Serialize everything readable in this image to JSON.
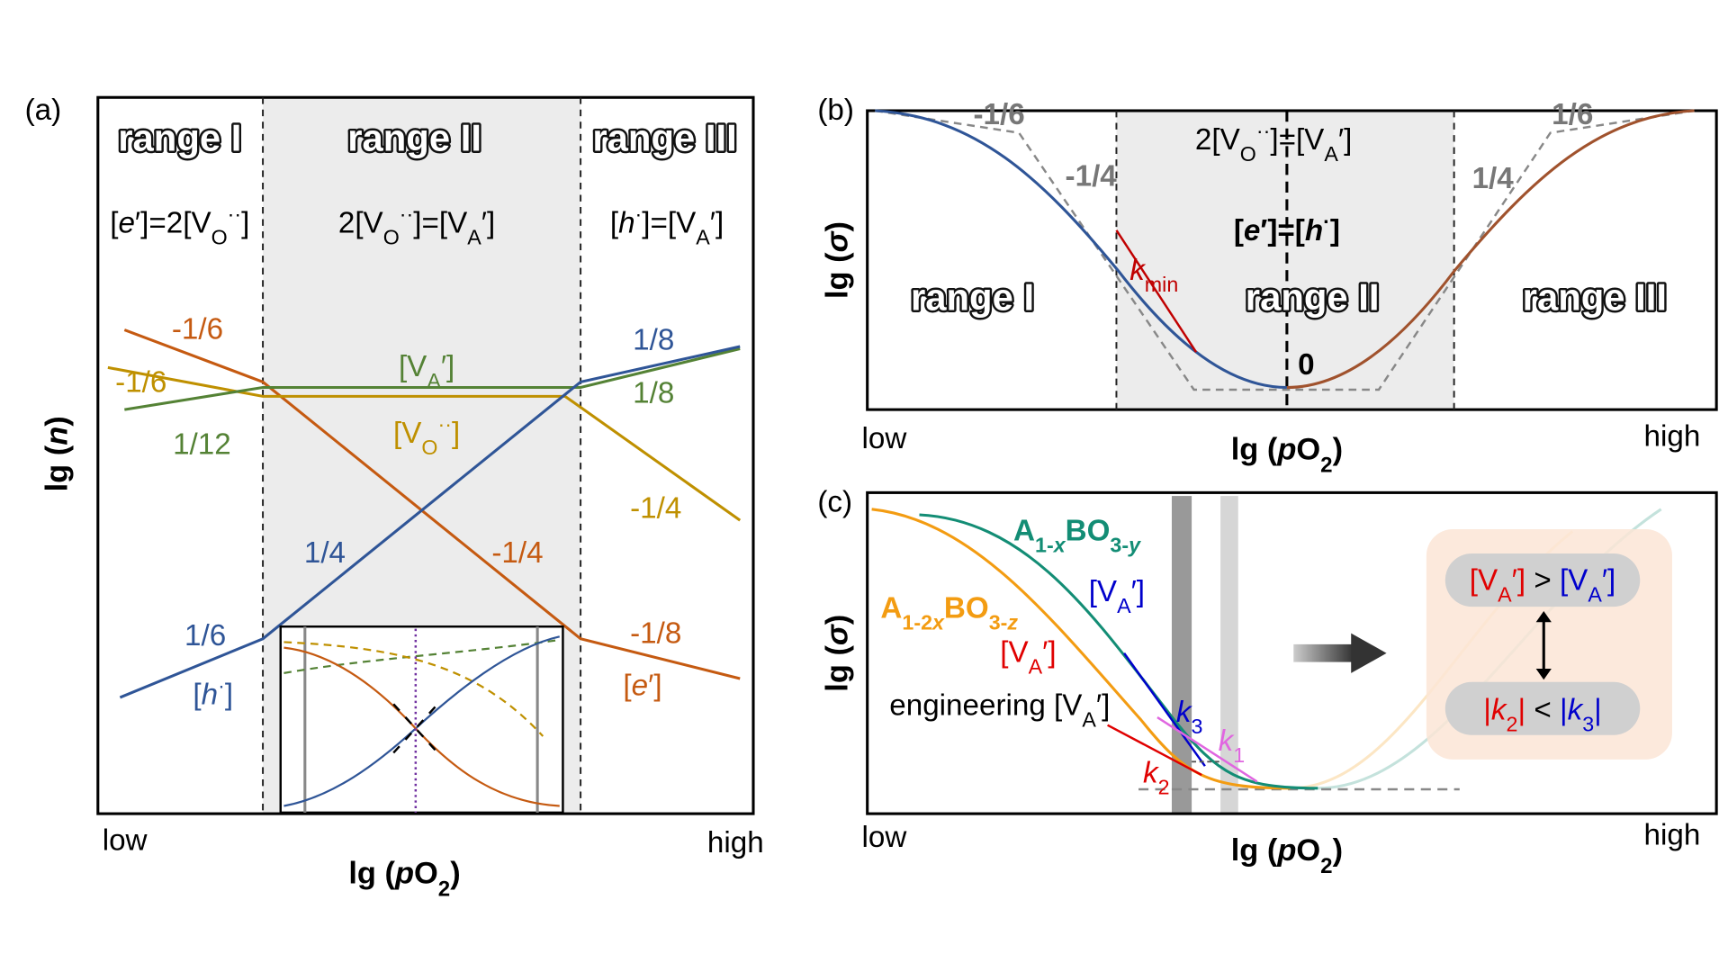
{
  "a": {
    "label": "(a)",
    "ranges": [
      "range I",
      "range II",
      "range III"
    ],
    "conditions": [
      [
        "[",
        "e",
        "′]=2[V",
        "O",
        "··",
        "]"
      ],
      [
        "2[V",
        "O",
        "··",
        "]=[V",
        "A",
        "′]"
      ],
      [
        "[",
        "h",
        "·",
        "]=[V",
        "A",
        "′]"
      ]
    ],
    "slopes": [
      "-1/6",
      "-1/6",
      "1/12",
      "1/8",
      "1/8",
      "-1/4",
      "1/4",
      "-1/4",
      "1/6",
      "-1/8"
    ],
    "species": {
      "VA": [
        "[V",
        "A",
        "′]"
      ],
      "VO": [
        "[V",
        "O",
        "··",
        "]"
      ],
      "h": [
        "[",
        "h",
        "·",
        "]"
      ],
      "e": [
        "[",
        "e",
        "′]"
      ]
    },
    "x_axis": {
      "low": "low",
      "high": "high",
      "title": [
        "lg (",
        "p",
        "O",
        "2",
        ")"
      ]
    },
    "y_axis": [
      "lg (",
      "n",
      ")"
    ]
  },
  "b": {
    "label": "(b)",
    "slopes": [
      "-1/6",
      "-1/4",
      "1/6",
      "1/4"
    ],
    "conditions": [
      [
        "2[V",
        "O",
        "··",
        "]=[V",
        "A",
        "′]"
      ],
      [
        "[",
        "e",
        "′]=[",
        "h",
        "·",
        "]"
      ]
    ],
    "k_min": [
      "k",
      "min"
    ],
    "ranges": [
      "range I",
      "range II",
      "range III"
    ],
    "zero": "0",
    "x_axis": {
      "low": "low",
      "high": "high",
      "title": [
        "lg (",
        "p",
        "O",
        "2",
        ")"
      ]
    },
    "y_axis": [
      "lg (",
      "σ",
      ")"
    ]
  },
  "c": {
    "label": "(c)",
    "materials": [
      [
        "A",
        "1-",
        "x",
        "BO",
        "3-",
        "y"
      ],
      [
        "A",
        "1-2",
        "x",
        "BO",
        "3-",
        "z"
      ]
    ],
    "vacancy": [
      "[V",
      "A",
      "′]"
    ],
    "engineering": [
      "engineering [V",
      "A",
      "′]"
    ],
    "k3": [
      "k",
      "3"
    ],
    "k1": [
      "k",
      "1"
    ],
    "k2": [
      "k",
      "2"
    ],
    "compare_vacancy": [
      "[V",
      "A",
      "′]",
      " > ",
      "[V",
      "A",
      "′]"
    ],
    "compare_slope": [
      "|",
      "k",
      "2",
      "|",
      " < ",
      "|",
      "k",
      "3",
      "|"
    ],
    "x_axis": {
      "low": "low",
      "high": "high",
      "title": [
        "lg (",
        "p",
        "O",
        "2",
        ")"
      ]
    },
    "y_axis": [
      "lg (",
      "σ",
      ")"
    ]
  }
}
